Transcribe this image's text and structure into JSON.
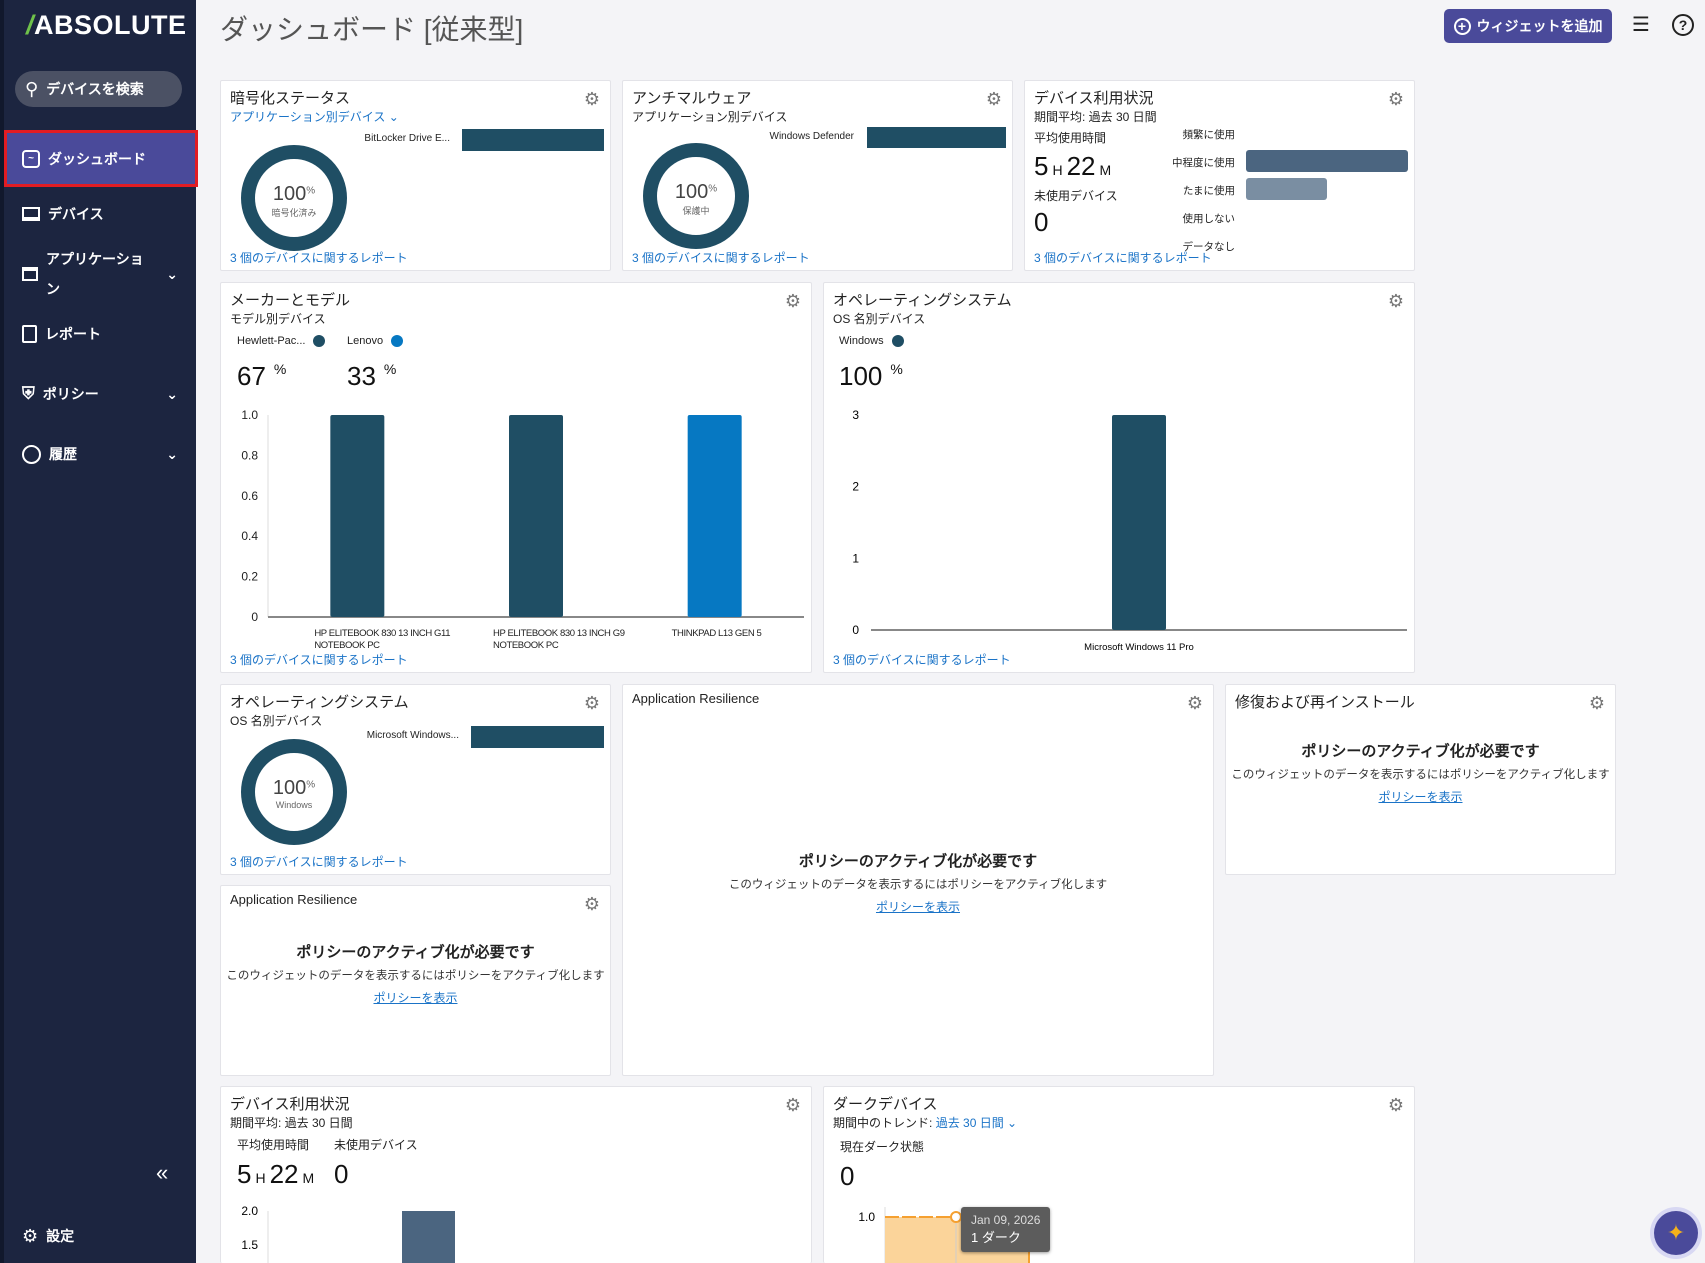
{
  "sidebar": {
    "logo": "ABSOLUTE",
    "search_label": "デバイスを検索",
    "items": [
      {
        "label": "ダッシュボード",
        "icon": "dashboard-icon",
        "active": true
      },
      {
        "label": "デバイス",
        "icon": "laptop-icon"
      },
      {
        "label": "アプリケーション",
        "icon": "window-icon",
        "expandable": true
      },
      {
        "label": "レポート",
        "icon": "document-icon"
      },
      {
        "label": "ポリシー",
        "icon": "shield-icon",
        "expandable": true
      },
      {
        "label": "履歴",
        "icon": "clock-icon",
        "expandable": true
      }
    ],
    "settings_label": "設定",
    "collapse_icon": "double-chevron-left-icon"
  },
  "header": {
    "title": "ダッシュボード [従来型]",
    "add_widget_label": "ウィジェットを追加"
  },
  "colors": {
    "accent": "#4a4a9a",
    "bar_dark": "#1f4e64",
    "bar_blue": "#0678c2",
    "usage_bar": "#4b6580",
    "usage_bar_light": "#7a8ea2",
    "dark_area": "#fbd49a",
    "link": "#1a73c7"
  },
  "widgets": {
    "encryption": {
      "title": "暗号化ステータス",
      "subtitle": "アプリケーション別デバイス ⌄",
      "bar_label": "BitLocker Drive E...",
      "bar_value": 1.0,
      "donut_value": "100",
      "donut_unit": "%",
      "donut_label": "暗号化済み",
      "report": "3 個のデバイスに関するレポート"
    },
    "antimalware": {
      "title": "アンチマルウェア",
      "subtitle": "アプリケーション別デバイス",
      "bar_label": "Windows Defender",
      "bar_value": 1.0,
      "donut_value": "100",
      "donut_unit": "%",
      "donut_label": "保護中",
      "report": "3 個のデバイスに関するレポート"
    },
    "usage": {
      "title": "デバイス利用状況",
      "subtitle": "期間平均: 過去 30 日間",
      "avg_label": "平均使用時間",
      "hours": "5",
      "h": "H",
      "minutes": "22",
      "m": "M",
      "unused_label": "未使用デバイス",
      "unused_value": "0",
      "categories": [
        "頻繁に使用",
        "中程度に使用",
        "たまに使用",
        "使用しない",
        "データなし"
      ],
      "values": [
        0,
        2,
        1,
        0,
        0
      ],
      "report": "3 個のデバイスに関するレポート"
    },
    "models": {
      "title": "メーカーとモデル",
      "subtitle": "モデル別デバイス",
      "legend": [
        {
          "name": "Hewlett-Pac...",
          "color": "#1f4e64",
          "percent": "67"
        },
        {
          "name": "Lenovo",
          "color": "#0678c2",
          "percent": "33"
        }
      ],
      "percent_unit": "%",
      "report": "3 個のデバイスに関するレポート"
    },
    "os_chart": {
      "title": "オペレーティングシステム",
      "subtitle": "OS 名別デバイス",
      "legend": [
        {
          "name": "Windows",
          "color": "#1f4e64",
          "percent": "100"
        }
      ],
      "percent_unit": "%",
      "report": "3 個のデバイスに関するレポート"
    },
    "os_donut": {
      "title": "オペレーティングシステム",
      "subtitle": "OS 名別デバイス",
      "bar_label": "Microsoft Windows...",
      "bar_value": 1.0,
      "donut_value": "100",
      "donut_unit": "%",
      "donut_label": "Windows",
      "report": "3 個のデバイスに関するレポート"
    },
    "app_resilience_large": {
      "title": "Application Resilience",
      "heading": "ポリシーのアクティブ化が必要です",
      "desc": "このウィジェットのデータを表示するにはポリシーをアクティブ化します",
      "link": "ポリシーを表示"
    },
    "repair": {
      "title": "修復および再インストール",
      "heading": "ポリシーのアクティブ化が必要です",
      "desc": "このウィジェットのデータを表示するにはポリシーをアクティブ化します",
      "link": "ポリシーを表示"
    },
    "app_resilience_small": {
      "title": "Application Resilience",
      "heading": "ポリシーのアクティブ化が必要です",
      "desc": "このウィジェットのデータを表示するにはポリシーをアクティブ化します",
      "link": "ポリシーを表示"
    },
    "usage2": {
      "title": "デバイス利用状況",
      "subtitle": "期間平均: 過去 30 日間",
      "avg_label": "平均使用時間",
      "hours": "5",
      "h": "H",
      "minutes": "22",
      "m": "M",
      "unused_label": "未使用デバイス",
      "unused_value": "0"
    },
    "dark": {
      "title": "ダークデバイス",
      "trend_label": "期間中のトレンド:",
      "trend_value": "過去 30 日間 ⌄",
      "current_label": "現在ダーク状態",
      "current_value": "0",
      "tooltip_date": "Jan 09, 2026",
      "tooltip_value": "1 ダーク"
    }
  },
  "chart_data": [
    {
      "type": "bar",
      "categories": [
        "HP ELITEBOOK 830 13 INCH G11 NOTEBOOK PC",
        "HP ELITEBOOK 830 13 INCH G9 NOTEBOOK PC",
        "THINKPAD L13 GEN 5"
      ],
      "values": [
        1,
        1,
        1
      ],
      "colors": [
        "#1f4e64",
        "#1f4e64",
        "#0678c2"
      ],
      "yticks": [
        "0",
        "0.2",
        "0.4",
        "0.6",
        "0.8",
        "1.0"
      ],
      "ylim": [
        0,
        1
      ],
      "grid": false
    },
    {
      "type": "bar",
      "categories": [
        "Microsoft Windows 11 Pro"
      ],
      "values": [
        3
      ],
      "colors": [
        "#1f4e64"
      ],
      "yticks": [
        "0",
        "1",
        "2",
        "3"
      ],
      "ylim": [
        0,
        3
      ],
      "grid": false
    },
    {
      "type": "bar",
      "orientation": "horizontal",
      "categories": [
        "頻繁に使用",
        "中程度に使用",
        "たまに使用",
        "使用しない",
        "データなし"
      ],
      "values": [
        0,
        2,
        1,
        0,
        0
      ]
    },
    {
      "type": "bar",
      "yticks_visible": [
        "2.0",
        "1.5"
      ],
      "values": [
        2
      ],
      "ylim": [
        0,
        2
      ]
    },
    {
      "type": "area",
      "yticks_visible": [
        "1.0"
      ],
      "points": [
        {
          "x": "Jan 09, 2026",
          "y": 1
        }
      ]
    }
  ]
}
